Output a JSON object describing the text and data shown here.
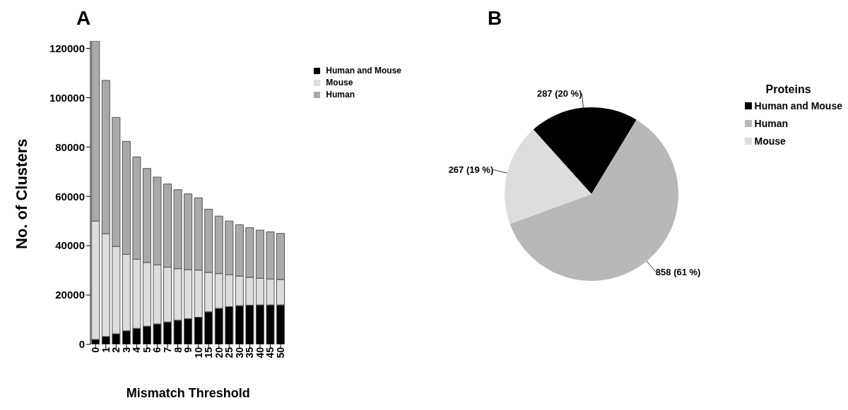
{
  "chart_data": [
    {
      "type": "bar",
      "title": "A",
      "xlabel": "Mismatch Threshold",
      "ylabel": "No. of Clusters",
      "stacked": true,
      "categories": [
        "0",
        "1",
        "2",
        "3",
        "4",
        "5",
        "6",
        "7",
        "8",
        "9",
        "10",
        "15",
        "20",
        "25",
        "30",
        "35",
        "40",
        "45",
        "50"
      ],
      "series": [
        {
          "name": "Human and Mouse",
          "color": "#000000",
          "values": [
            2000,
            3200,
            4300,
            5500,
            6500,
            7400,
            8300,
            9100,
            9800,
            10400,
            11000,
            13200,
            14600,
            15300,
            15700,
            15900,
            16000,
            16000,
            16000
          ]
        },
        {
          "name": "Mouse",
          "color": "#dcdcdc",
          "values": [
            48000,
            41600,
            35400,
            31000,
            28000,
            25800,
            23900,
            22200,
            20900,
            19900,
            19100,
            16000,
            14100,
            12900,
            12000,
            11300,
            10800,
            10500,
            10300
          ]
        },
        {
          "name": "Human",
          "color": "#aaaaaa",
          "values": [
            73000,
            62200,
            52300,
            45800,
            41500,
            38100,
            35600,
            33700,
            32000,
            30700,
            29300,
            25600,
            23300,
            21800,
            20800,
            20100,
            19500,
            19100,
            18700
          ]
        }
      ],
      "ylim": [
        0,
        123000
      ],
      "yticks": [
        0,
        20000,
        40000,
        60000,
        80000,
        100000,
        120000
      ],
      "legend": "top right"
    },
    {
      "type": "pie",
      "title": "B",
      "legend_title": "Proteins",
      "categories": [
        "Human and Mouse",
        "Human",
        "Mouse"
      ],
      "values": [
        287,
        858,
        267
      ],
      "colors": [
        "#000000",
        "#b8b8b8",
        "#dddddd"
      ],
      "value_labels": [
        "287 (20 %)",
        "858 (61 %)",
        "267 (19 %)"
      ],
      "legend": "right"
    }
  ]
}
